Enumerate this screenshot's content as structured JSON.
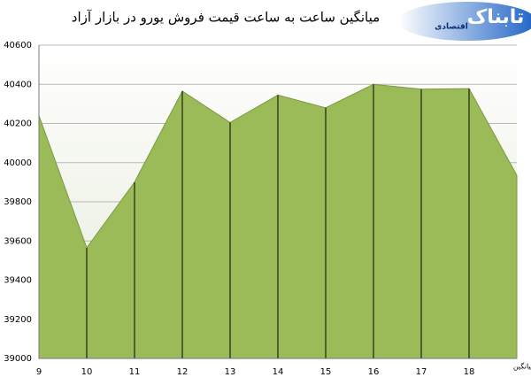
{
  "chart_data": {
    "type": "area",
    "title": "میانگین ساعت به ساعت قیمت فروش یورو در بازار آزاد",
    "categories": [
      "9",
      "10",
      "11",
      "12",
      "13",
      "14",
      "15",
      "16",
      "17",
      "18",
      "میانگین"
    ],
    "values": [
      40240,
      39565,
      39900,
      40365,
      40205,
      40345,
      40280,
      40400,
      40375,
      40378,
      39935
    ],
    "color": "#9bbb59",
    "ylim": [
      39000,
      40600
    ],
    "yticks": [
      39000,
      39200,
      39400,
      39600,
      39800,
      40000,
      40200,
      40400,
      40600
    ],
    "grid": true,
    "drop_lines": true
  },
  "logo": {
    "name": "تابناک",
    "subtitle": "اقتصادی"
  }
}
